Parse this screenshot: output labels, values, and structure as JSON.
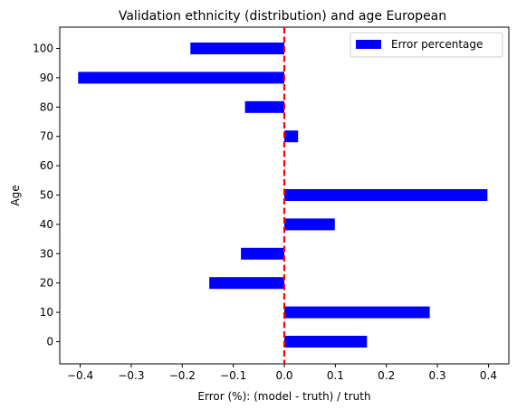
{
  "chart_data": {
    "type": "bar",
    "orientation": "horizontal",
    "title": "Validation ethnicity (distribution) and age European",
    "xlabel": "Error (%): (model - truth) / truth",
    "ylabel": "Age",
    "categories": [
      "0",
      "10",
      "20",
      "30",
      "40",
      "50",
      "60",
      "70",
      "80",
      "90",
      "100"
    ],
    "series": [
      {
        "name": "Error percentage",
        "color": "#0000ff",
        "values": [
          0.162,
          0.285,
          -0.147,
          -0.085,
          0.099,
          0.398,
          0.0,
          0.027,
          -0.077,
          -0.404,
          -0.184
        ]
      }
    ],
    "xlim": [
      -0.44,
      0.44
    ],
    "xticks": [
      -0.4,
      -0.3,
      -0.2,
      -0.1,
      0.0,
      0.1,
      0.2,
      0.3,
      0.4
    ],
    "xtick_labels": [
      "−0.4",
      "−0.3",
      "−0.2",
      "−0.1",
      "0.0",
      "0.1",
      "0.2",
      "0.3",
      "0.4"
    ],
    "reference_line": {
      "x": 0.0,
      "color": "#ff0000",
      "style": "dashed"
    },
    "grid": false,
    "legend_position": "top-right"
  }
}
